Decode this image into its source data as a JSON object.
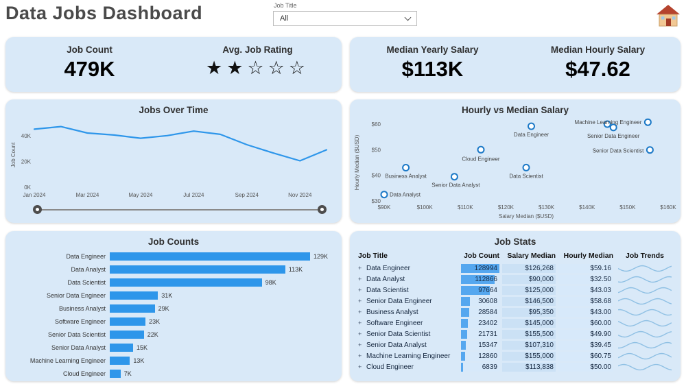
{
  "header": {
    "title": "Data Jobs Dashboard",
    "filter_label": "Job Title",
    "filter_value": "All"
  },
  "kpis": {
    "job_count": {
      "label": "Job Count",
      "value": "479K"
    },
    "job_rating": {
      "label": "Avg. Job Rating",
      "rating": 2,
      "max_rating": 5
    },
    "yearly_salary": {
      "label": "Median Yearly Salary",
      "value": "$113K"
    },
    "hourly_salary": {
      "label": "Median Hourly Salary",
      "value": "$47.62"
    }
  },
  "colors": {
    "card_bg": "#D9E9F8",
    "accent_blue": "#2E96EA",
    "databar_blue": "#55A7EF",
    "cell_blue_light": "#CBE1F5",
    "cell_blue_lighter": "#D7E9FA",
    "spark_blue": "#8FC0E4",
    "point_stroke": "#1C79C7"
  },
  "chart_data": [
    {
      "type": "line",
      "title": "Jobs Over Time",
      "xlabel": "",
      "ylabel": "Job Count",
      "x": [
        "Jan 2024",
        "Feb 2024",
        "Mar 2024",
        "Apr 2024",
        "May 2024",
        "Jun 2024",
        "Jul 2024",
        "Aug 2024",
        "Sep 2024",
        "Oct 2024",
        "Nov 2024",
        "Dec 2024"
      ],
      "values": [
        45000,
        47000,
        42000,
        40500,
        38000,
        40000,
        43500,
        41000,
        33000,
        26500,
        20500,
        29000
      ],
      "ylim": [
        0,
        50000
      ],
      "yticks": [
        {
          "v": 0,
          "label": "0K"
        },
        {
          "v": 20000,
          "label": "20K"
        },
        {
          "v": 40000,
          "label": "40K"
        }
      ],
      "xticks": [
        {
          "i": 0,
          "label": "Jan 2024"
        },
        {
          "i": 2,
          "label": "Mar 2024"
        },
        {
          "i": 4,
          "label": "May 2024"
        },
        {
          "i": 6,
          "label": "Jul 2024"
        },
        {
          "i": 8,
          "label": "Sep 2024"
        },
        {
          "i": 10,
          "label": "Nov 2024"
        }
      ]
    },
    {
      "type": "scatter",
      "title": "Hourly vs Median Salary",
      "xlabel": "Salary Median ($USD)",
      "ylabel": "Hourly Median ($USD)",
      "xlim": [
        90000,
        160000
      ],
      "ylim": [
        30,
        60
      ],
      "xticks": [
        {
          "v": 90000,
          "label": "$90K"
        },
        {
          "v": 100000,
          "label": "$100K"
        },
        {
          "v": 110000,
          "label": "$110K"
        },
        {
          "v": 120000,
          "label": "$120K"
        },
        {
          "v": 130000,
          "label": "$130K"
        },
        {
          "v": 140000,
          "label": "$140K"
        },
        {
          "v": 150000,
          "label": "$150K"
        },
        {
          "v": 160000,
          "label": "$160K"
        }
      ],
      "yticks": [
        {
          "v": 30,
          "label": "$30"
        },
        {
          "v": 40,
          "label": "$40"
        },
        {
          "v": 50,
          "label": "$50"
        },
        {
          "v": 60,
          "label": "$60"
        }
      ],
      "points": [
        {
          "label": "Data Engineer",
          "x": 126268,
          "y": 59.16,
          "label_visible": true
        },
        {
          "label": "Data Analyst",
          "x": 90000,
          "y": 32.5,
          "label_visible": true
        },
        {
          "label": "Data Scientist",
          "x": 125000,
          "y": 43.03,
          "label_visible": true
        },
        {
          "label": "Senior Data Engineer",
          "x": 146500,
          "y": 58.68,
          "label_visible": true
        },
        {
          "label": "Business Analyst",
          "x": 95350,
          "y": 43.0,
          "label_visible": true
        },
        {
          "label": "Software Engineer",
          "x": 145000,
          "y": 60.0,
          "label_visible": false
        },
        {
          "label": "Senior Data Scientist",
          "x": 155500,
          "y": 49.9,
          "label_visible": true
        },
        {
          "label": "Senior Data Analyst",
          "x": 107310,
          "y": 39.45,
          "label_visible": true
        },
        {
          "label": "Machine Learning Engineer",
          "x": 155000,
          "y": 60.75,
          "label_visible": true
        },
        {
          "label": "Cloud Engineer",
          "x": 113838,
          "y": 50.0,
          "label_visible": true
        }
      ]
    },
    {
      "type": "bar",
      "title": "Job Counts",
      "orientation": "horizontal",
      "categories": [
        "Data Engineer",
        "Data Analyst",
        "Data Scientist",
        "Senior Data Engineer",
        "Business Analyst",
        "Software Engineer",
        "Senior Data Scientist",
        "Senior Data Analyst",
        "Machine Learning Engineer",
        "Cloud Engineer"
      ],
      "values": [
        129000,
        113000,
        98000,
        31000,
        29000,
        23000,
        22000,
        15000,
        13000,
        7000
      ],
      "value_labels": [
        "129K",
        "113K",
        "98K",
        "31K",
        "29K",
        "23K",
        "22K",
        "15K",
        "13K",
        "7K"
      ]
    },
    {
      "type": "table",
      "title": "Job Stats",
      "columns": [
        "Job Title",
        "Job Count",
        "Salary Median",
        "Hourly Median",
        "Job Trends"
      ],
      "rows": [
        {
          "job_title": "Data Engineer",
          "job_count": 128994,
          "salary_median": "$126,268",
          "hourly_median": "$59.16"
        },
        {
          "job_title": "Data Analyst",
          "job_count": 112866,
          "salary_median": "$90,000",
          "hourly_median": "$32.50"
        },
        {
          "job_title": "Data Scientist",
          "job_count": 97664,
          "salary_median": "$125,000",
          "hourly_median": "$43.03"
        },
        {
          "job_title": "Senior Data Engineer",
          "job_count": 30608,
          "salary_median": "$146,500",
          "hourly_median": "$58.68"
        },
        {
          "job_title": "Business Analyst",
          "job_count": 28584,
          "salary_median": "$95,350",
          "hourly_median": "$43.00"
        },
        {
          "job_title": "Software Engineer",
          "job_count": 23402,
          "salary_median": "$145,000",
          "hourly_median": "$60.00"
        },
        {
          "job_title": "Senior Data Scientist",
          "job_count": 21731,
          "salary_median": "$155,500",
          "hourly_median": "$49.90"
        },
        {
          "job_title": "Senior Data Analyst",
          "job_count": 15347,
          "salary_median": "$107,310",
          "hourly_median": "$39.45"
        },
        {
          "job_title": "Machine Learning Engineer",
          "job_count": 12860,
          "salary_median": "$155,000",
          "hourly_median": "$60.75"
        },
        {
          "job_title": "Cloud Engineer",
          "job_count": 6839,
          "salary_median": "$113,838",
          "hourly_median": "$50.00"
        }
      ]
    }
  ]
}
